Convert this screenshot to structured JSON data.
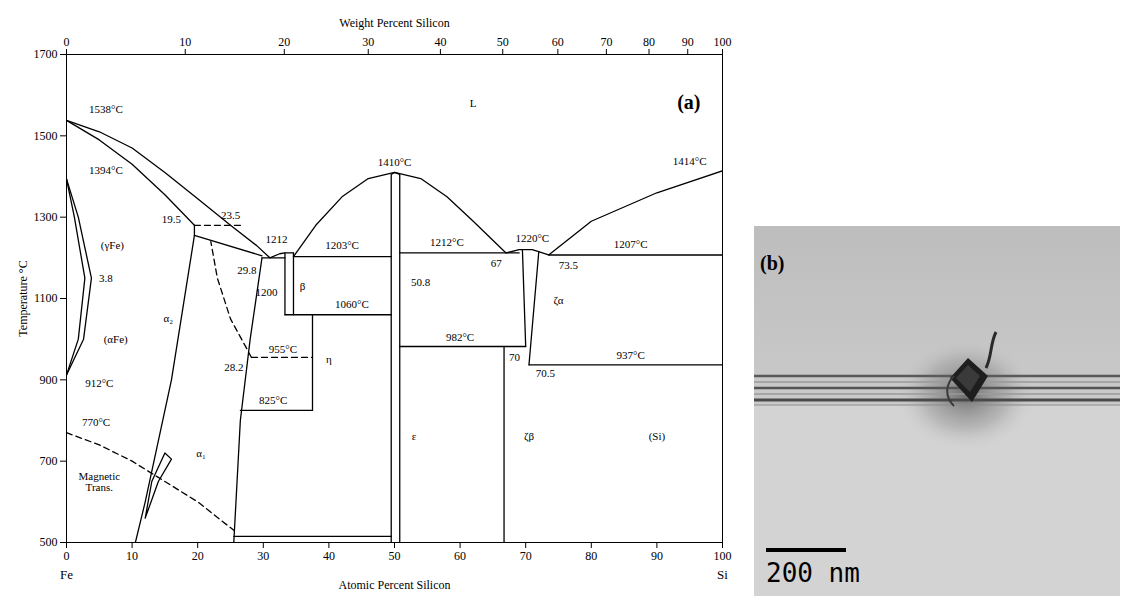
{
  "chart_data": {
    "type": "line",
    "x_label": "Atomic Percent Silicon",
    "y_label": "Temperature °C",
    "x2_label": "Weight Percent Silicon",
    "panel_label": "(a)",
    "end_labels": {
      "left": "Fe",
      "right": "Si"
    },
    "xlim": [
      0,
      100
    ],
    "xticks": [
      0,
      10,
      20,
      30,
      40,
      50,
      60,
      70,
      80,
      90,
      100
    ],
    "x2ticks": [
      0,
      {
        "value": 18.1,
        "label": "10"
      },
      {
        "value": 33.2,
        "label": "20"
      },
      {
        "value": 46.0,
        "label": "30"
      },
      {
        "value": 57.0,
        "label": "40"
      },
      {
        "value": 66.5,
        "label": "50"
      },
      {
        "value": 74.9,
        "label": "60"
      },
      {
        "value": 82.3,
        "label": "70"
      },
      {
        "value": 88.8,
        "label": "80"
      },
      {
        "value": 94.7,
        "label": "90"
      },
      100
    ],
    "ylim": [
      500,
      1700
    ],
    "yticks": [
      500,
      700,
      900,
      1100,
      1300,
      1500,
      1700
    ],
    "grid": false,
    "boundaries": [
      {
        "line_style": "solid",
        "values": [
          [
            0,
            1538
          ],
          [
            5,
            1510
          ],
          [
            10,
            1470
          ],
          [
            15,
            1410
          ],
          [
            20,
            1345
          ],
          [
            25,
            1280
          ],
          [
            29,
            1230
          ],
          [
            31,
            1200
          ],
          [
            32.5,
            1210
          ],
          [
            33.3,
            1212
          ],
          [
            34.6,
            1212
          ]
        ]
      },
      {
        "line_style": "solid",
        "values": [
          [
            0,
            1538
          ],
          [
            5,
            1490
          ],
          [
            10,
            1430
          ],
          [
            15,
            1355
          ],
          [
            19.5,
            1280
          ]
        ]
      },
      {
        "line_style": "dashed",
        "values": [
          [
            19.5,
            1280
          ],
          [
            27,
            1280
          ]
        ]
      },
      {
        "line_style": "solid",
        "values": [
          [
            19.5,
            1280
          ],
          [
            19.5,
            1255
          ],
          [
            29.8,
            1205
          ]
        ]
      },
      {
        "line_style": "solid",
        "values": [
          [
            19.5,
            1255
          ],
          [
            16,
            900
          ],
          [
            12,
            600
          ],
          [
            10.5,
            500
          ]
        ]
      },
      {
        "line_style": "solid",
        "values": [
          [
            29.8,
            1200
          ],
          [
            28,
            1000
          ],
          [
            26.5,
            800
          ],
          [
            25.5,
            500
          ]
        ]
      },
      {
        "line_style": "dashed",
        "values": [
          [
            28.2,
            955
          ],
          [
            25,
            1050
          ],
          [
            23,
            1150
          ],
          [
            22,
            1240
          ]
        ]
      },
      {
        "line_style": "dashed",
        "values": [
          [
            28.2,
            955
          ],
          [
            37.5,
            955
          ]
        ]
      },
      {
        "line_style": "solid",
        "values": [
          [
            0,
            1394
          ],
          [
            1.8,
            1300
          ],
          [
            3.8,
            1150
          ],
          [
            2.6,
            1000
          ],
          [
            0,
            912
          ]
        ]
      },
      {
        "line_style": "solid",
        "values": [
          [
            0,
            1394
          ],
          [
            1.2,
            1300
          ],
          [
            2.8,
            1150
          ],
          [
            1.8,
            1000
          ],
          [
            0,
            912
          ]
        ]
      },
      {
        "line_style": "dashed",
        "values": [
          [
            0,
            770
          ],
          [
            5,
            740
          ],
          [
            10,
            700
          ],
          [
            15,
            650
          ],
          [
            20,
            600
          ],
          [
            25.5,
            530
          ]
        ]
      },
      {
        "line_style": "solid",
        "values": [
          [
            12,
            560
          ],
          [
            14,
            650
          ],
          [
            16,
            705
          ],
          [
            15,
            720
          ],
          [
            13,
            650
          ],
          [
            12,
            560
          ]
        ]
      },
      {
        "line_style": "solid",
        "values": [
          [
            29.8,
            1200
          ],
          [
            33.3,
            1200
          ]
        ]
      },
      {
        "line_style": "solid",
        "values": [
          [
            33.3,
            1212
          ],
          [
            33.3,
            1060
          ]
        ]
      },
      {
        "line_style": "solid",
        "values": [
          [
            34.6,
            1212
          ],
          [
            34.6,
            1060
          ]
        ]
      },
      {
        "line_style": "solid",
        "values": [
          [
            33.3,
            1060
          ],
          [
            49.5,
            1060
          ]
        ]
      },
      {
        "line_style": "solid",
        "values": [
          [
            34.6,
            1203
          ],
          [
            49.5,
            1203
          ]
        ]
      },
      {
        "line_style": "solid",
        "values": [
          [
            37.5,
            1060
          ],
          [
            37.5,
            825
          ]
        ]
      },
      {
        "line_style": "solid",
        "values": [
          [
            26.5,
            825
          ],
          [
            37.5,
            825
          ]
        ]
      },
      {
        "line_style": "solid",
        "values": [
          [
            25.5,
            515
          ],
          [
            49.5,
            515
          ]
        ]
      },
      {
        "line_style": "solid",
        "values": [
          [
            34.6,
            1203
          ],
          [
            38,
            1280
          ],
          [
            42,
            1350
          ],
          [
            46,
            1395
          ],
          [
            50,
            1410
          ],
          [
            54,
            1395
          ],
          [
            58,
            1350
          ],
          [
            62,
            1290
          ],
          [
            67,
            1212
          ],
          [
            69,
            1220
          ],
          [
            71,
            1220
          ],
          [
            73.5,
            1207
          ],
          [
            80,
            1290
          ],
          [
            90,
            1360
          ],
          [
            100,
            1414
          ]
        ]
      },
      {
        "line_style": "solid",
        "values": [
          [
            49.5,
            500
          ],
          [
            49.5,
            1405
          ],
          [
            50,
            1410
          ],
          [
            50.8,
            1405
          ],
          [
            50.8,
            500
          ]
        ]
      },
      {
        "line_style": "solid",
        "values": [
          [
            50.8,
            1212
          ],
          [
            69,
            1212
          ]
        ]
      },
      {
        "line_style": "solid",
        "values": [
          [
            69.5,
            1220
          ],
          [
            70,
            982
          ]
        ]
      },
      {
        "line_style": "solid",
        "values": [
          [
            72,
            1216
          ],
          [
            70.5,
            937
          ]
        ]
      },
      {
        "line_style": "solid",
        "values": [
          [
            50.8,
            982
          ],
          [
            70,
            982
          ]
        ]
      },
      {
        "line_style": "solid",
        "values": [
          [
            66.7,
            982
          ],
          [
            66.7,
            500
          ]
        ]
      },
      {
        "line_style": "solid",
        "values": [
          [
            70.5,
            937
          ],
          [
            100,
            937
          ]
        ]
      },
      {
        "line_style": "solid",
        "values": [
          [
            73.5,
            1207
          ],
          [
            100,
            1207
          ]
        ]
      }
    ],
    "annotations": [
      {
        "text": "1538°C",
        "x": 6,
        "y": 1565
      },
      {
        "text": "1394°C",
        "x": 6,
        "y": 1415
      },
      {
        "text": "(γFe)",
        "x": 7,
        "y": 1230
      },
      {
        "text": "3.8",
        "x": 6,
        "y": 1150
      },
      {
        "text": "(αFe)",
        "x": 7.5,
        "y": 1000
      },
      {
        "text": "912°C",
        "x": 5,
        "y": 890
      },
      {
        "text": "770°C",
        "x": 4.5,
        "y": 795
      },
      {
        "text": "Magnetic Trans.",
        "x": 5,
        "y": 650
      },
      {
        "text": "α₂",
        "x": 15.5,
        "y": 1050
      },
      {
        "text": "α₁",
        "x": 20.5,
        "y": 720
      },
      {
        "text": "19.5",
        "x": 16,
        "y": 1295
      },
      {
        "text": "23.5",
        "x": 25,
        "y": 1305
      },
      {
        "text": "29.8",
        "x": 27.5,
        "y": 1170
      },
      {
        "text": "1212",
        "x": 32,
        "y": 1245
      },
      {
        "text": "1200",
        "x": 30.5,
        "y": 1115
      },
      {
        "text": "β",
        "x": 36,
        "y": 1130
      },
      {
        "text": "1203°C",
        "x": 42,
        "y": 1230
      },
      {
        "text": "1060°C",
        "x": 43.5,
        "y": 1085
      },
      {
        "text": "955°C",
        "x": 33,
        "y": 975
      },
      {
        "text": "28.2",
        "x": 25.5,
        "y": 930
      },
      {
        "text": "η",
        "x": 40,
        "y": 950
      },
      {
        "text": "825°C",
        "x": 31.5,
        "y": 850
      },
      {
        "text": "1410°C",
        "x": 50,
        "y": 1435
      },
      {
        "text": "50.8",
        "x": 54,
        "y": 1140
      },
      {
        "text": "ε",
        "x": 53,
        "y": 760
      },
      {
        "text": "1212°C",
        "x": 58,
        "y": 1237
      },
      {
        "text": "67",
        "x": 65.5,
        "y": 1185
      },
      {
        "text": "1220°C",
        "x": 71,
        "y": 1248
      },
      {
        "text": "73.5",
        "x": 76.5,
        "y": 1180
      },
      {
        "text": "ζα",
        "x": 75,
        "y": 1095
      },
      {
        "text": "982°C",
        "x": 60,
        "y": 1005
      },
      {
        "text": "70",
        "x": 68.3,
        "y": 955
      },
      {
        "text": "70.5",
        "x": 73,
        "y": 915
      },
      {
        "text": "ζβ",
        "x": 70.5,
        "y": 760
      },
      {
        "text": "937°C",
        "x": 86,
        "y": 960
      },
      {
        "text": "1207°C",
        "x": 86,
        "y": 1232
      },
      {
        "text": "1414°C",
        "x": 95,
        "y": 1437
      },
      {
        "text": "(Si)",
        "x": 90,
        "y": 760
      },
      {
        "text": "L",
        "x": 62,
        "y": 1580
      }
    ]
  },
  "figure_b": {
    "panel_label": "(b)",
    "scale_bar_label": "200 nm"
  }
}
